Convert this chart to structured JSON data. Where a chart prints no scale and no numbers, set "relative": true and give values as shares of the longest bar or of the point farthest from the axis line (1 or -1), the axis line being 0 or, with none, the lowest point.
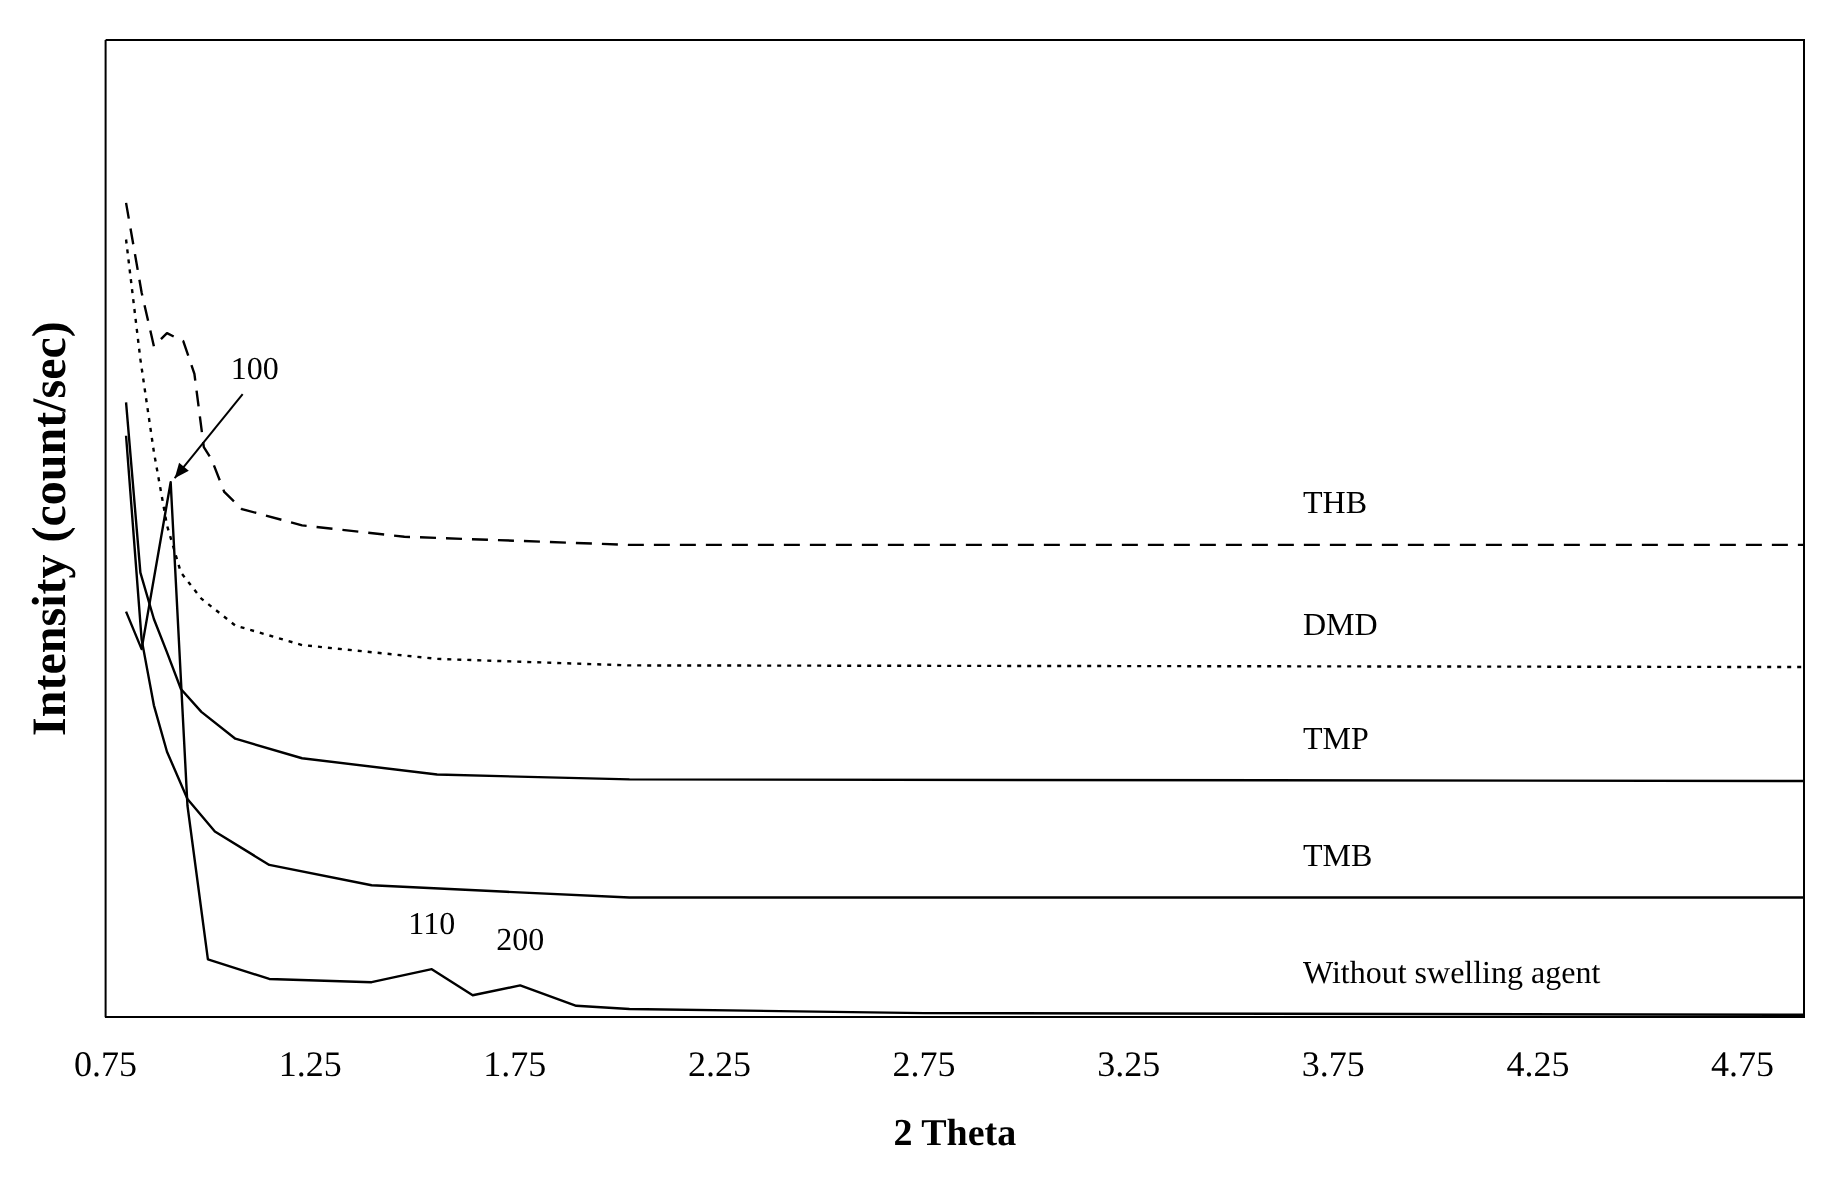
{
  "chart_data": {
    "type": "line",
    "relative": true,
    "xlabel": "2 Theta",
    "ylabel": "Intensity (count/sec)",
    "xlim": [
      0.75,
      4.9
    ],
    "xticks": [
      0.75,
      1.25,
      1.75,
      2.25,
      2.75,
      3.25,
      3.75,
      4.25,
      4.75
    ],
    "grid": false,
    "legend": false,
    "marker": "none",
    "series": [
      {
        "name": "THB",
        "color": "#000000",
        "line_style": "dashed",
        "x": [
          0.8,
          0.838,
          0.868,
          0.9,
          0.94,
          0.967,
          0.99,
          1.009,
          1.04,
          1.083,
          1.23,
          1.48,
          2.03,
          4.9
        ],
        "values": [
          1.0,
          0.89,
          0.824,
          0.84,
          0.83,
          0.79,
          0.7,
          0.685,
          0.645,
          0.624,
          0.604,
          0.59,
          0.58,
          0.58
        ]
      },
      {
        "name": "DMD",
        "color": "#000000",
        "line_style": "dotted",
        "x": [
          0.8,
          0.835,
          0.868,
          0.9,
          0.934,
          0.984,
          1.067,
          1.23,
          1.56,
          2.03,
          4.9
        ],
        "values": [
          0.955,
          0.808,
          0.694,
          0.604,
          0.546,
          0.514,
          0.481,
          0.457,
          0.44,
          0.432,
          0.43
        ]
      },
      {
        "name": "TMP",
        "color": "#000000",
        "line_style": "solid",
        "x": [
          0.8,
          0.835,
          0.868,
          0.9,
          0.934,
          0.984,
          1.067,
          1.23,
          1.56,
          2.03,
          4.9
        ],
        "values": [
          0.755,
          0.546,
          0.489,
          0.448,
          0.403,
          0.375,
          0.342,
          0.318,
          0.298,
          0.292,
          0.29
        ]
      },
      {
        "name": "TMB",
        "color": "#000000",
        "line_style": "solid",
        "x": [
          0.8,
          0.838,
          0.868,
          0.9,
          0.95,
          1.017,
          1.15,
          1.4,
          1.73,
          2.03,
          4.9
        ],
        "values": [
          0.714,
          0.464,
          0.383,
          0.326,
          0.268,
          0.228,
          0.187,
          0.162,
          0.154,
          0.147,
          0.147
        ]
      },
      {
        "name": "Without swelling agent",
        "color": "#000000",
        "line_style": "solid",
        "x": [
          0.8,
          0.838,
          0.909,
          0.95,
          1.0,
          1.15,
          1.4,
          1.547,
          1.647,
          1.763,
          1.9,
          2.03,
          2.75,
          4.9
        ],
        "values": [
          0.498,
          0.452,
          0.657,
          0.26,
          0.071,
          0.047,
          0.043,
          0.059,
          0.027,
          0.039,
          0.014,
          0.01,
          0.005,
          0.003
        ]
      }
    ],
    "annotations": [
      {
        "text": "100",
        "x": 0.909,
        "y": 0.657
      },
      {
        "text": "110",
        "x": 1.547,
        "y": 0.059
      },
      {
        "text": "200",
        "x": 1.763,
        "y": 0.039
      }
    ]
  }
}
